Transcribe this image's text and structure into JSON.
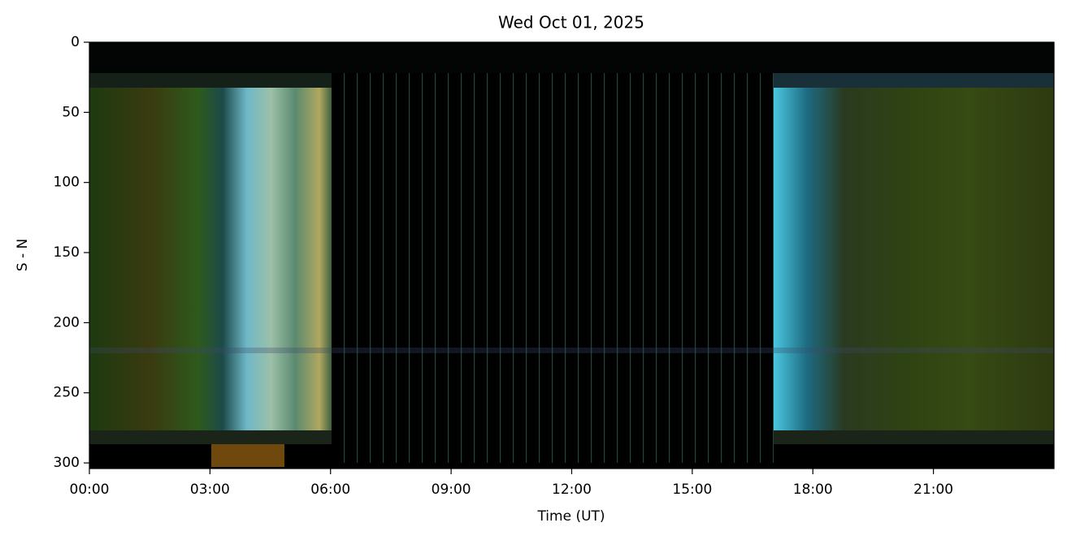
{
  "chart_data": {
    "type": "image",
    "title": "Wed Oct 01, 2025",
    "xlabel": "Time (UT)",
    "ylabel": "S - N",
    "xlim": [
      0,
      24
    ],
    "xticks": [
      {
        "value": 0,
        "label": "00:00"
      },
      {
        "value": 3,
        "label": "03:00"
      },
      {
        "value": 6,
        "label": "06:00"
      },
      {
        "value": 9,
        "label": "09:00"
      },
      {
        "value": 12,
        "label": "12:00"
      },
      {
        "value": 15,
        "label": "15:00"
      },
      {
        "value": 18,
        "label": "18:00"
      },
      {
        "value": 21,
        "label": "21:00"
      }
    ],
    "ylim": [
      304,
      0
    ],
    "yticks": [
      0,
      50,
      100,
      150,
      200,
      250,
      300
    ]
  }
}
